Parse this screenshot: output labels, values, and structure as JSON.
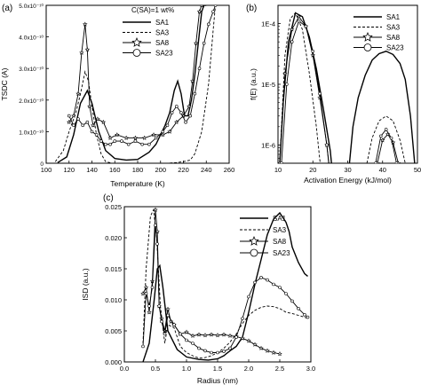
{
  "chart_data": [
    {
      "type": "line",
      "panel_label": "(a)",
      "xlabel": "Temperature (K)",
      "ylabel": "TSDC (A)",
      "legend_title": "C(SA)=1 wt%",
      "legend_placement": "top-right",
      "xlim": [
        100,
        260
      ],
      "ylim": [
        0,
        5e-10
      ],
      "x_ticks": [
        100,
        120,
        140,
        160,
        180,
        200,
        220,
        240,
        260
      ],
      "x_tick_labels": [
        "100",
        "120",
        "140",
        "160",
        "180",
        "200",
        "220",
        "240",
        "260"
      ],
      "y_ticks": [
        0,
        1e-10,
        2e-10,
        3e-10,
        4e-10,
        5e-10
      ],
      "y_tick_labels": [
        "0",
        "1.0x10⁻¹⁰",
        "2.0x10⁻¹⁰",
        "3.0x10⁻¹⁰",
        "4.0x10⁻¹⁰",
        "5.0x10⁻¹⁰"
      ],
      "grid": false,
      "series": [
        {
          "name": "SA1",
          "style": "solid",
          "marker": "none",
          "x": [
            110,
            118,
            124,
            130,
            136,
            140,
            146,
            152,
            160,
            170,
            180,
            190,
            196,
            200,
            204,
            208,
            212,
            215,
            218,
            221,
            224,
            227,
            230,
            233,
            236,
            238,
            240
          ],
          "y": [
            2e-12,
            2e-11,
            9e-11,
            1.9e-10,
            2.3e-10,
            1.9e-10,
            1e-10,
            4e-11,
            1.5e-11,
            1e-11,
            1.2e-11,
            3.5e-11,
            6e-11,
            9e-11,
            1.2e-10,
            1.6e-10,
            2.3e-10,
            2.6e-10,
            2.2e-10,
            1.5e-10,
            1.5e-10,
            2e-10,
            2.8e-10,
            3.8e-10,
            4.8e-10,
            5e-10,
            5e-10
          ]
        },
        {
          "name": "SA3",
          "style": "dashed",
          "marker": "none",
          "x": [
            108,
            115,
            120,
            126,
            130,
            134,
            137,
            140,
            144,
            148,
            152,
            158,
            166,
            176,
            186,
            196,
            206,
            214,
            220,
            226,
            230,
            236,
            242,
            246,
            248
          ],
          "y": [
            5e-12,
            4e-11,
            1e-10,
            1.6e-10,
            2.2e-10,
            2.9e-10,
            2.6e-10,
            1.8e-10,
            9e-11,
            3e-11,
            5e-12,
            0.0,
            0.0,
            0.0,
            0.0,
            0.0,
            0.0,
            2e-12,
            5e-12,
            1e-11,
            3e-11,
            1e-10,
            2.5e-10,
            4.2e-10,
            5e-10
          ]
        },
        {
          "name": "SA8",
          "style": "solid",
          "marker": "star",
          "x": [
            120,
            124,
            128,
            131,
            134,
            136,
            138,
            141,
            145,
            150,
            156,
            162,
            170,
            178,
            186,
            194,
            202,
            208,
            214,
            220,
            225,
            228,
            231,
            234,
            236
          ],
          "y": [
            1.3e-10,
            1.5e-10,
            2.2e-10,
            3.5e-10,
            4.4e-10,
            3.6e-10,
            1.8e-10,
            1.2e-10,
            1.4e-10,
            1.3e-10,
            8e-11,
            9e-11,
            8e-11,
            8e-11,
            8e-11,
            9e-11,
            9e-11,
            1e-10,
            1.3e-10,
            1.5e-10,
            1.8e-10,
            2.6e-10,
            3.8e-10,
            4.8e-10,
            5e-10
          ]
        },
        {
          "name": "SA23",
          "style": "solid",
          "marker": "circle",
          "x": [
            120,
            124,
            128,
            132,
            136,
            140,
            144,
            148,
            152,
            156,
            160,
            166,
            172,
            178,
            184,
            190,
            196,
            202,
            206,
            210,
            214,
            218,
            222,
            226,
            230,
            234,
            238,
            242,
            246,
            248
          ],
          "y": [
            1.5e-10,
            1.2e-10,
            1.4e-10,
            1.2e-10,
            1.3e-10,
            1e-10,
            9e-11,
            7e-11,
            6e-11,
            6e-11,
            7e-11,
            7e-11,
            6e-11,
            7e-11,
            6e-11,
            6e-11,
            8e-11,
            1e-10,
            1.2e-10,
            1.6e-10,
            1.8e-10,
            1.6e-10,
            1.3e-10,
            1.5e-10,
            2.2e-10,
            3e-10,
            3.8e-10,
            4.4e-10,
            4.8e-10,
            5e-10
          ]
        }
      ]
    },
    {
      "type": "line",
      "panel_label": "(b)",
      "xlabel": "Activation Energy   (kJ/mol)",
      "ylabel": "f(E)  (a.u.)",
      "y_scale": "log",
      "legend_placement": "top-right",
      "xlim": [
        10,
        50
      ],
      "ylim": [
        5e-07,
        0.0002
      ],
      "x_ticks": [
        10,
        20,
        30,
        40,
        50
      ],
      "x_tick_labels": [
        "10",
        "20",
        "30",
        "40",
        "50"
      ],
      "y_ticks": [
        1e-06,
        1e-05,
        0.0001
      ],
      "y_tick_labels": [
        "1E-6",
        "1E-5",
        "1E-4"
      ],
      "grid": false,
      "series": [
        {
          "name": "SA1",
          "style": "solid",
          "marker": "none",
          "peaks": [
            {
              "x": [
                10.5,
                11.5,
                13,
                15,
                17,
                19,
                21,
                23,
                25,
                26.5,
                27.2
              ],
              "y": [
                5e-07,
                5e-06,
                5e-05,
                0.00015,
                0.00013,
                6e-05,
                1.8e-05,
                4e-06,
                8e-07,
                1e-07,
                1e-08
              ]
            },
            {
              "x": [
                30.5,
                31.5,
                33,
                35,
                37,
                39,
                41,
                43,
                45,
                46.5,
                48,
                49.2
              ],
              "y": [
                5e-07,
                2e-06,
                6e-06,
                1.4e-05,
                2.5e-05,
                3.2e-05,
                3.5e-05,
                3.1e-05,
                2.2e-05,
                1.2e-05,
                3e-06,
                5e-07
              ]
            }
          ]
        },
        {
          "name": "SA3",
          "style": "dashed",
          "marker": "none",
          "peaks": [
            {
              "x": [
                10.5,
                12,
                13.5,
                15,
                17,
                19,
                21,
                22.5,
                23.3
              ],
              "y": [
                5e-07,
                3e-05,
                0.00012,
                0.00015,
                8e-05,
                1.5e-05,
                2e-06,
                3e-07,
                1e-08
              ]
            },
            {
              "x": [
                35.5,
                37,
                39,
                41,
                43,
                45,
                46.5
              ],
              "y": [
                5e-07,
                1.3e-06,
                2.5e-06,
                3e-06,
                2.5e-06,
                1.2e-06,
                5e-07
              ]
            }
          ]
        },
        {
          "name": "SA8",
          "style": "solid",
          "marker": "star",
          "peaks": [
            {
              "x": [
                10.5,
                12,
                14,
                16,
                18,
                20,
                22,
                24,
                26,
                27
              ],
              "y": [
                5e-07,
                1.5e-05,
                8e-05,
                0.00013,
                9e-05,
                3e-05,
                6e-06,
                1e-06,
                1e-07,
                1e-08
              ]
            },
            {
              "x": [
                38.5,
                40,
                41.5,
                43,
                44.5
              ],
              "y": [
                5e-07,
                1.2e-06,
                1.5e-06,
                1.1e-06,
                5e-07
              ]
            }
          ]
        },
        {
          "name": "SA23",
          "style": "solid",
          "marker": "circle",
          "peaks": [
            {
              "x": [
                11,
                12.5,
                14,
                16,
                18,
                20,
                22,
                24,
                25.5,
                26.3
              ],
              "y": [
                5e-07,
                1e-05,
                5e-05,
                0.00011,
                9e-05,
                3.5e-05,
                7e-06,
                1e-06,
                1.5e-07,
                1e-08
              ]
            },
            {
              "x": [
                38,
                39.5,
                41,
                42.5,
                44
              ],
              "y": [
                5e-07,
                1.4e-06,
                1.8e-06,
                1.3e-06,
                5e-07
              ]
            }
          ]
        }
      ]
    },
    {
      "type": "line",
      "panel_label": "(c)",
      "xlabel": "Radius   (nm)",
      "ylabel": "ISD  (a.u.)",
      "legend_placement": "top-right",
      "xlim": [
        0,
        3.0
      ],
      "ylim": [
        0,
        0.025
      ],
      "x_ticks": [
        0,
        0.5,
        1.0,
        1.5,
        2.0,
        2.5,
        3.0
      ],
      "x_tick_labels": [
        "0.0",
        "0.5",
        "1.0",
        "1.5",
        "2.0",
        "2.5",
        "3.0"
      ],
      "y_ticks": [
        0,
        0.005,
        0.01,
        0.015,
        0.02,
        0.025
      ],
      "y_tick_labels": [
        "0.000",
        "0.005",
        "0.010",
        "0.015",
        "0.020",
        "0.025"
      ],
      "grid": false,
      "series": [
        {
          "name": "SA1",
          "style": "solid",
          "marker": "none",
          "x": [
            0.3,
            0.4,
            0.48,
            0.53,
            0.57,
            0.62,
            0.7,
            0.85,
            1.0,
            1.2,
            1.35,
            1.5,
            1.6,
            1.7,
            1.8,
            1.9,
            2.0,
            2.1,
            2.2,
            2.3,
            2.4,
            2.5,
            2.6,
            2.65,
            2.7,
            2.8,
            2.9,
            2.95
          ],
          "y": [
            0.0,
            0.003,
            0.01,
            0.015,
            0.0155,
            0.012,
            0.005,
            0.002,
            0.0008,
            0.0004,
            0.0003,
            0.0005,
            0.001,
            0.0018,
            0.0025,
            0.004,
            0.008,
            0.0125,
            0.0165,
            0.0205,
            0.023,
            0.024,
            0.0225,
            0.021,
            0.0185,
            0.016,
            0.0142,
            0.0138
          ]
        },
        {
          "name": "SA3",
          "style": "dashed",
          "marker": "none",
          "x": [
            0.3,
            0.35,
            0.42,
            0.47,
            0.52,
            0.58,
            0.65,
            0.7,
            0.8,
            0.9,
            1.0,
            1.1,
            1.2,
            1.3,
            1.4,
            1.5,
            1.6,
            1.7,
            1.8,
            1.9,
            2.0,
            2.1,
            2.2,
            2.3,
            2.4,
            2.5,
            2.6,
            2.7,
            2.8,
            2.9,
            2.95
          ],
          "y": [
            0.003,
            0.015,
            0.0235,
            0.0245,
            0.02,
            0.009,
            0.003,
            0.006,
            0.0055,
            0.0025,
            0.0015,
            0.001,
            0.0006,
            0.0007,
            0.001,
            0.0015,
            0.0022,
            0.0032,
            0.0045,
            0.0062,
            0.0075,
            0.0083,
            0.0088,
            0.009,
            0.0089,
            0.0086,
            0.008,
            0.0078,
            0.0075,
            0.0072,
            0.007
          ]
        },
        {
          "name": "SA8",
          "style": "solid",
          "marker": "star",
          "x": [
            0.3,
            0.35,
            0.4,
            0.45,
            0.5,
            0.53,
            0.56,
            0.6,
            0.65,
            0.7,
            0.75,
            0.8,
            0.9,
            1.0,
            1.1,
            1.2,
            1.3,
            1.4,
            1.5,
            1.6,
            1.7,
            1.8,
            1.9,
            2.0,
            2.1,
            2.2,
            2.3,
            2.4,
            2.5
          ],
          "y": [
            0.011,
            0.012,
            0.008,
            0.013,
            0.0245,
            0.021,
            0.009,
            0.007,
            0.005,
            0.0085,
            0.0065,
            0.006,
            0.0045,
            0.0048,
            0.0042,
            0.0044,
            0.0043,
            0.0044,
            0.0043,
            0.0044,
            0.0042,
            0.0041,
            0.0038,
            0.0034,
            0.0028,
            0.0022,
            0.0018,
            0.0015,
            0.0013
          ]
        },
        {
          "name": "SA23",
          "style": "solid",
          "marker": "circle",
          "x": [
            0.3,
            0.35,
            0.4,
            0.45,
            0.5,
            0.53,
            0.56,
            0.6,
            0.65,
            0.7,
            0.8,
            0.9,
            1.0,
            1.1,
            1.2,
            1.3,
            1.4,
            1.5,
            1.6,
            1.7,
            1.8,
            1.9,
            2.0,
            2.1,
            2.2,
            2.3,
            2.4,
            2.5,
            2.6,
            2.7,
            2.8,
            2.9,
            2.95
          ],
          "y": [
            0.0025,
            0.011,
            0.009,
            0.012,
            0.022,
            0.019,
            0.009,
            0.0065,
            0.0045,
            0.0075,
            0.006,
            0.0045,
            0.0035,
            0.003,
            0.0022,
            0.0018,
            0.0015,
            0.0015,
            0.0017,
            0.0022,
            0.004,
            0.007,
            0.0105,
            0.0128,
            0.0136,
            0.0132,
            0.0125,
            0.012,
            0.011,
            0.0098,
            0.0086,
            0.0076,
            0.0072
          ]
        }
      ]
    }
  ]
}
